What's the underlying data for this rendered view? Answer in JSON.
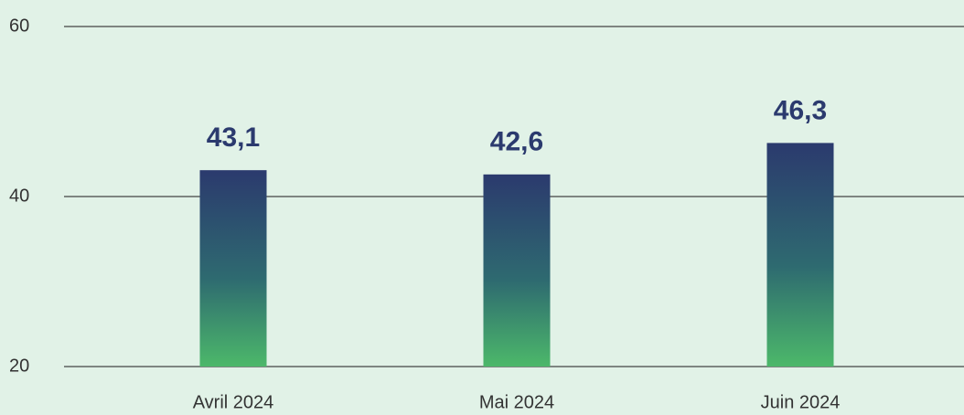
{
  "chart_data": {
    "type": "bar",
    "categories": [
      "Avril 2024",
      "Mai 2024",
      "Juin 2024"
    ],
    "values": [
      43.1,
      42.6,
      46.3
    ],
    "value_labels": [
      "43,1",
      "42,6",
      "46,3"
    ],
    "color_top": "#2b3a6e",
    "color_bottom": "#4cb86a",
    "ylim": [
      20,
      60
    ],
    "yticks": [
      20,
      40,
      60
    ],
    "grid": true
  }
}
